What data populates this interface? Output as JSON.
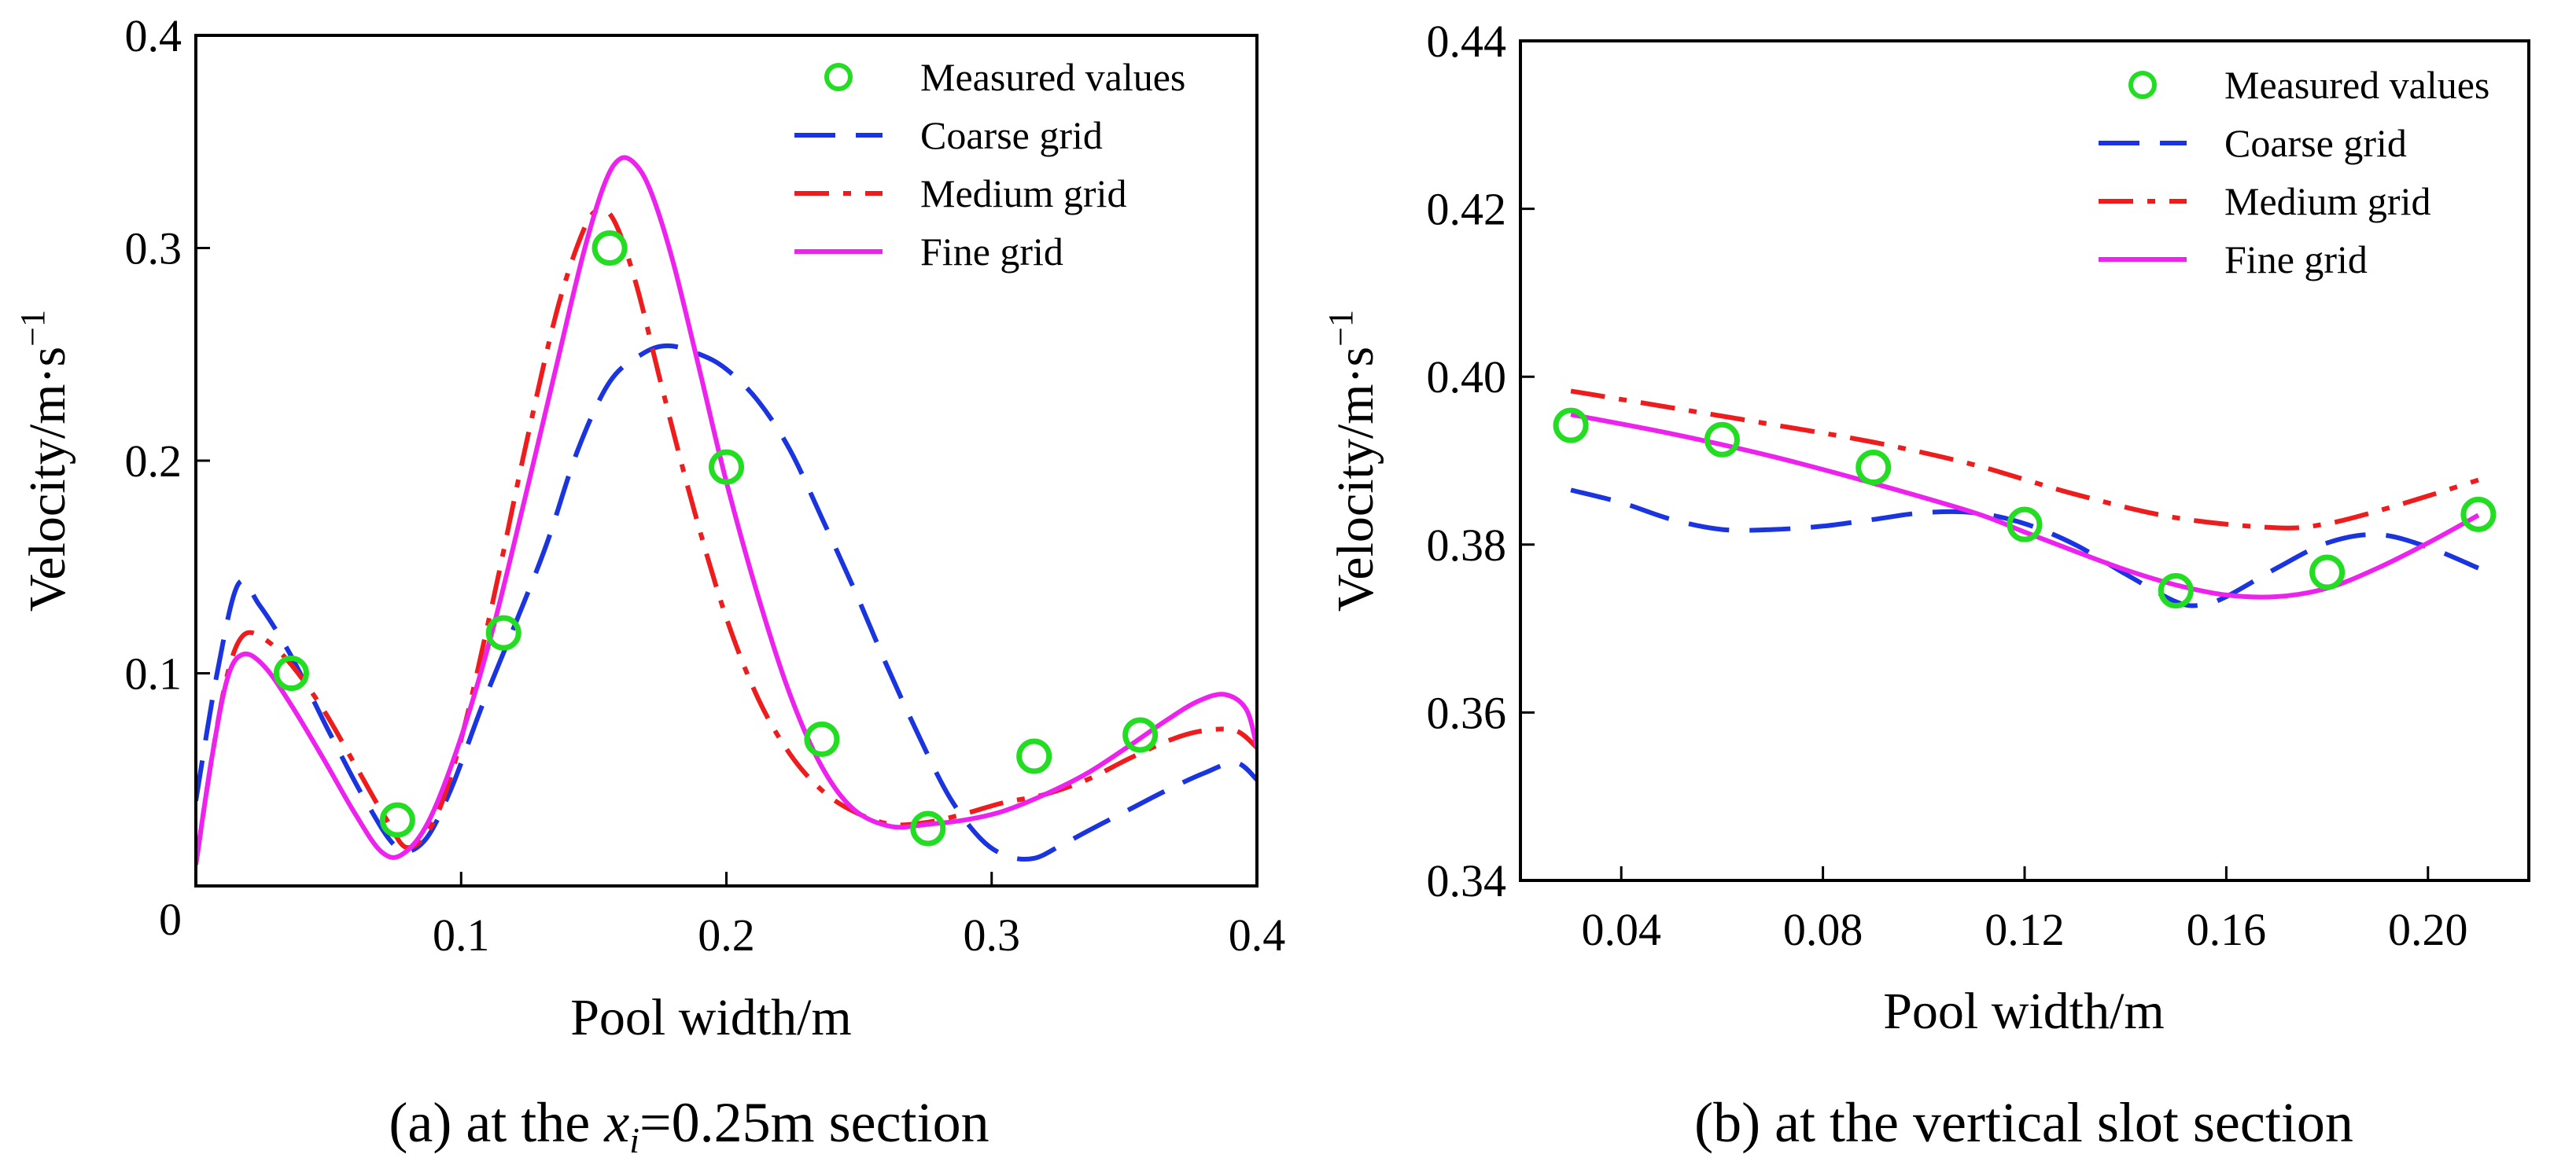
{
  "chart_data": [
    {
      "type": "line",
      "caption": {
        "prefix": "(a) at the ",
        "var": "x",
        "sub": "i",
        "suffix": "=0.25m section"
      },
      "xlabel": "Pool width/m",
      "ylabel": {
        "base": "Velocity/m·s",
        "sup": "−1"
      },
      "xlim": [
        0,
        0.4
      ],
      "ylim": [
        0,
        0.4
      ],
      "xticks": [
        0.1,
        0.2,
        0.3,
        0.4
      ],
      "xtick_labels": [
        "0.1",
        "0.2",
        "0.3",
        "0.4"
      ],
      "yticks": [
        0,
        0.1,
        0.2,
        0.3,
        0.4
      ],
      "ytick_labels": [
        "0",
        "0.1",
        "0.2",
        "0.3",
        "0.4"
      ],
      "legend_position": "top-right",
      "series": [
        {
          "name": "Measured values",
          "style": "markers",
          "color": "#22dd22",
          "x": [
            0.036,
            0.076,
            0.116,
            0.156,
            0.2,
            0.236,
            0.276,
            0.316,
            0.356
          ],
          "y": [
            0.1,
            0.031,
            0.119,
            0.3,
            0.197,
            0.069,
            0.027,
            0.061,
            0.071
          ]
        },
        {
          "name": "Coarse grid",
          "style": "dashed",
          "color": "#1a35e0",
          "x": [
            0,
            0.008,
            0.016,
            0.024,
            0.036,
            0.05,
            0.064,
            0.076,
            0.086,
            0.096,
            0.108,
            0.12,
            0.132,
            0.144,
            0.156,
            0.168,
            0.178,
            0.19,
            0.2,
            0.212,
            0.224,
            0.236,
            0.248,
            0.26,
            0.272,
            0.284,
            0.296,
            0.306,
            0.316,
            0.326,
            0.338,
            0.352,
            0.366,
            0.38,
            0.392,
            0.4
          ],
          "y": [
            0.04,
            0.1,
            0.142,
            0.132,
            0.108,
            0.073,
            0.04,
            0.018,
            0.021,
            0.045,
            0.085,
            0.122,
            0.16,
            0.205,
            0.237,
            0.25,
            0.254,
            0.25,
            0.243,
            0.228,
            0.205,
            0.173,
            0.14,
            0.105,
            0.072,
            0.042,
            0.022,
            0.014,
            0.013,
            0.019,
            0.027,
            0.036,
            0.045,
            0.053,
            0.058,
            0.05
          ]
        },
        {
          "name": "Medium grid",
          "style": "dashdot",
          "color": "#ee1c1c",
          "x": [
            0,
            0.006,
            0.012,
            0.018,
            0.026,
            0.036,
            0.048,
            0.06,
            0.072,
            0.08,
            0.09,
            0.1,
            0.112,
            0.124,
            0.136,
            0.146,
            0.152,
            0.158,
            0.166,
            0.176,
            0.188,
            0.2,
            0.212,
            0.224,
            0.236,
            0.248,
            0.262,
            0.276,
            0.29,
            0.304,
            0.32,
            0.336,
            0.352,
            0.368,
            0.38,
            0.392,
            0.4
          ],
          "y": [
            0.01,
            0.06,
            0.1,
            0.118,
            0.116,
            0.104,
            0.083,
            0.057,
            0.031,
            0.018,
            0.031,
            0.069,
            0.134,
            0.205,
            0.27,
            0.308,
            0.318,
            0.312,
            0.283,
            0.233,
            0.176,
            0.126,
            0.088,
            0.062,
            0.045,
            0.035,
            0.029,
            0.03,
            0.034,
            0.039,
            0.043,
            0.05,
            0.06,
            0.069,
            0.073,
            0.073,
            0.065
          ]
        },
        {
          "name": "Fine grid",
          "style": "solid",
          "color": "#ee22ee",
          "x": [
            0,
            0.006,
            0.012,
            0.018,
            0.026,
            0.036,
            0.048,
            0.06,
            0.07,
            0.078,
            0.088,
            0.1,
            0.112,
            0.124,
            0.136,
            0.146,
            0.154,
            0.16,
            0.166,
            0.172,
            0.18,
            0.19,
            0.2,
            0.212,
            0.224,
            0.236,
            0.248,
            0.262,
            0.276,
            0.29,
            0.304,
            0.32,
            0.336,
            0.352,
            0.366,
            0.378,
            0.388,
            0.396,
            0.4
          ],
          "y": [
            0.01,
            0.06,
            0.098,
            0.109,
            0.103,
            0.085,
            0.06,
            0.034,
            0.016,
            0.015,
            0.031,
            0.07,
            0.121,
            0.182,
            0.245,
            0.297,
            0.33,
            0.342,
            0.339,
            0.325,
            0.293,
            0.242,
            0.19,
            0.136,
            0.09,
            0.056,
            0.036,
            0.028,
            0.029,
            0.031,
            0.035,
            0.043,
            0.053,
            0.066,
            0.078,
            0.087,
            0.09,
            0.083,
            0.065
          ]
        }
      ]
    },
    {
      "type": "line",
      "caption": {
        "text": "(b) at the vertical slot section"
      },
      "xlabel": "Pool width/m",
      "ylabel": {
        "base": "Velocity/m·s",
        "sup": "−1"
      },
      "xlim": [
        0.02,
        0.22
      ],
      "ylim": [
        0.34,
        0.44
      ],
      "xticks": [
        0.04,
        0.08,
        0.12,
        0.16,
        0.2
      ],
      "xtick_labels": [
        "0.04",
        "0.08",
        "0.12",
        "0.16",
        "0.20"
      ],
      "yticks": [
        0.34,
        0.36,
        0.38,
        0.4,
        0.42,
        0.44
      ],
      "ytick_labels": [
        "0.34",
        "0.36",
        "0.38",
        "0.40",
        "0.42",
        "0.44"
      ],
      "legend_position": "top-right",
      "series": [
        {
          "name": "Measured values",
          "style": "markers",
          "color": "#22dd22",
          "x": [
            0.03,
            0.06,
            0.09,
            0.12,
            0.15,
            0.18,
            0.21
          ],
          "y": [
            0.3942,
            0.3925,
            0.3892,
            0.3824,
            0.3745,
            0.3767,
            0.3836
          ]
        },
        {
          "name": "Coarse grid",
          "style": "dashed",
          "color": "#1a35e0",
          "x": [
            0.03,
            0.04,
            0.05,
            0.06,
            0.07,
            0.08,
            0.09,
            0.1,
            0.11,
            0.12,
            0.13,
            0.14,
            0.15,
            0.155,
            0.16,
            0.17,
            0.18,
            0.19,
            0.2,
            0.21
          ],
          "y": [
            0.3865,
            0.385,
            0.383,
            0.3818,
            0.3818,
            0.3822,
            0.383,
            0.3838,
            0.3838,
            0.3825,
            0.38,
            0.3765,
            0.3732,
            0.3728,
            0.3738,
            0.3772,
            0.3802,
            0.3812,
            0.3797,
            0.3772
          ]
        },
        {
          "name": "Medium grid",
          "style": "dashdot",
          "color": "#ee1c1c",
          "x": [
            0.03,
            0.05,
            0.07,
            0.09,
            0.11,
            0.13,
            0.15,
            0.17,
            0.18,
            0.19,
            0.2,
            0.21
          ],
          "y": [
            0.3983,
            0.3963,
            0.3943,
            0.3922,
            0.3895,
            0.386,
            0.3832,
            0.382,
            0.3825,
            0.384,
            0.3858,
            0.3877
          ]
        },
        {
          "name": "Fine grid",
          "style": "solid",
          "color": "#ee22ee",
          "x": [
            0.03,
            0.05,
            0.07,
            0.09,
            0.11,
            0.12,
            0.13,
            0.14,
            0.15,
            0.16,
            0.17,
            0.18,
            0.19,
            0.2,
            0.21
          ],
          "y": [
            0.3955,
            0.3932,
            0.3905,
            0.3873,
            0.3838,
            0.3815,
            0.3792,
            0.377,
            0.3752,
            0.374,
            0.3738,
            0.3748,
            0.3772,
            0.3802,
            0.3835
          ]
        }
      ]
    }
  ]
}
